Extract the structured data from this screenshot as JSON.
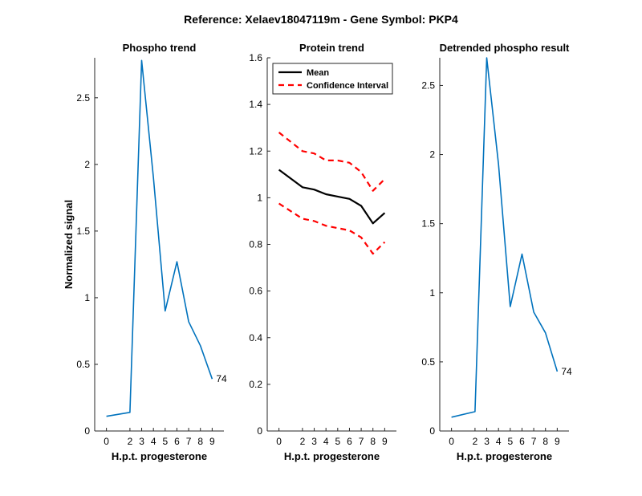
{
  "suptitle": "Reference:  Xelaev18047119m - Gene Symbol:  PKP4",
  "colors": {
    "phospho": "#0072BD",
    "mean": "#000000",
    "ci": "#FF0000"
  },
  "chart_data": [
    {
      "type": "line",
      "title": "Phospho trend",
      "xlabel": "H.p.t. progesterone",
      "ylabel": "Normalized signal",
      "xlim": [
        -1,
        10
      ],
      "ylim": [
        0,
        2.8
      ],
      "xticks": [
        0,
        2,
        3,
        4,
        5,
        6,
        7,
        8,
        9
      ],
      "yticks": [
        0,
        0.5,
        1,
        1.5,
        2,
        2.5
      ],
      "ytick_labels": [
        "0",
        "0.5",
        "1",
        "1.5",
        "2",
        "2.5"
      ],
      "series": [
        {
          "x": [
            0,
            2,
            3,
            4,
            5,
            6,
            7,
            8,
            9
          ],
          "values": [
            0.11,
            0.14,
            2.78,
            1.9,
            0.9,
            1.27,
            0.82,
            0.64,
            0.39
          ]
        }
      ],
      "annotation": {
        "text": "74",
        "x": 9,
        "y": 0.39
      }
    },
    {
      "type": "line",
      "title": "Protein trend",
      "xlabel": "H.p.t. progesterone",
      "ylabel": "",
      "xlim": [
        -1,
        10
      ],
      "ylim": [
        0,
        1.6
      ],
      "xticks": [
        0,
        2,
        3,
        4,
        5,
        6,
        7,
        8,
        9
      ],
      "yticks": [
        0,
        0.2,
        0.4,
        0.6,
        0.8,
        1,
        1.2,
        1.4,
        1.6
      ],
      "ytick_labels": [
        "0",
        "0.2",
        "0.4",
        "0.6",
        "0.8",
        "1",
        "1.2",
        "1.4",
        "1.6"
      ],
      "legend": {
        "placement": "top-left",
        "entries": [
          "Mean",
          "Confidence Interval"
        ]
      },
      "series": [
        {
          "name": "Mean",
          "x": [
            0,
            2,
            3,
            4,
            5,
            6,
            7,
            8,
            9
          ],
          "values": [
            1.12,
            1.045,
            1.035,
            1.015,
            1.005,
            0.995,
            0.965,
            0.89,
            0.935
          ]
        },
        {
          "name": "Confidence Interval",
          "x": [
            0,
            2,
            3,
            4,
            5,
            6,
            7,
            8,
            9
          ],
          "values": [
            1.28,
            1.2,
            1.19,
            1.16,
            1.16,
            1.15,
            1.11,
            1.03,
            1.08
          ]
        },
        {
          "name": "Confidence Interval",
          "x": [
            0,
            2,
            3,
            4,
            5,
            6,
            7,
            8,
            9
          ],
          "values": [
            0.975,
            0.91,
            0.9,
            0.88,
            0.87,
            0.86,
            0.83,
            0.76,
            0.81
          ]
        }
      ]
    },
    {
      "type": "line",
      "title": "Detrended phospho result",
      "xlabel": "H.p.t. progesterone",
      "ylabel": "",
      "xlim": [
        -1,
        10
      ],
      "ylim": [
        0,
        2.7
      ],
      "xticks": [
        0,
        2,
        3,
        4,
        5,
        6,
        7,
        8,
        9
      ],
      "yticks": [
        0,
        0.5,
        1,
        1.5,
        2,
        2.5
      ],
      "ytick_labels": [
        "0",
        "0.5",
        "1",
        "1.5",
        "2",
        "2.5"
      ],
      "series": [
        {
          "x": [
            0,
            2,
            3,
            4,
            5,
            6,
            7,
            8,
            9
          ],
          "values": [
            0.1,
            0.14,
            2.7,
            1.93,
            0.9,
            1.28,
            0.86,
            0.71,
            0.43
          ]
        }
      ],
      "annotation": {
        "text": "74",
        "x": 9,
        "y": 0.43
      }
    }
  ]
}
